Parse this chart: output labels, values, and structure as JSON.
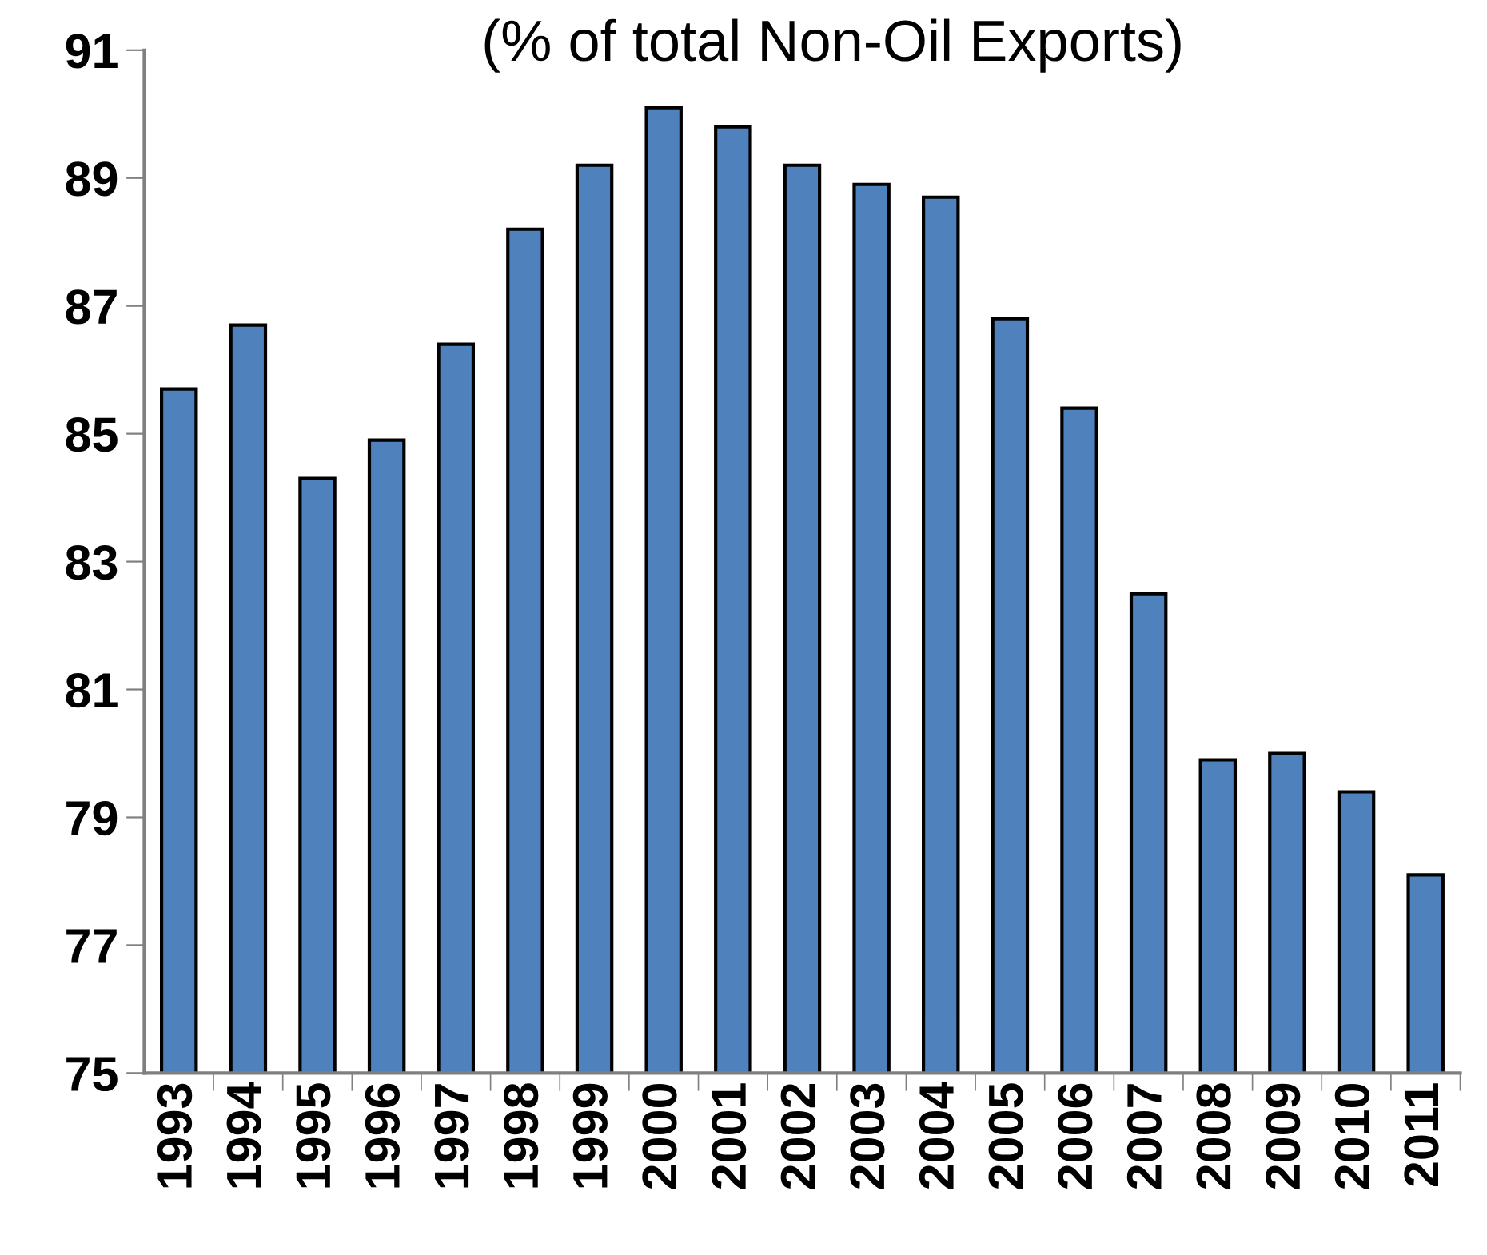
{
  "chart_data": {
    "type": "bar",
    "title": "(% of total Non-Oil Exports)",
    "categories": [
      "1993",
      "1994",
      "1995",
      "1996",
      "1997",
      "1998",
      "1999",
      "2000",
      "2001",
      "2002",
      "2003",
      "2004",
      "2005",
      "2006",
      "2007",
      "2008",
      "2009",
      "2010",
      "2011"
    ],
    "values": [
      85.7,
      86.7,
      84.3,
      84.9,
      86.4,
      88.2,
      89.2,
      90.1,
      89.8,
      89.2,
      88.9,
      88.7,
      86.8,
      85.4,
      82.5,
      79.9,
      80.0,
      79.4,
      78.1
    ],
    "color": "#4f81bd",
    "ylim": [
      75,
      91
    ],
    "yticks": [
      75,
      77,
      79,
      81,
      83,
      85,
      87,
      89,
      91
    ],
    "grid": false
  }
}
